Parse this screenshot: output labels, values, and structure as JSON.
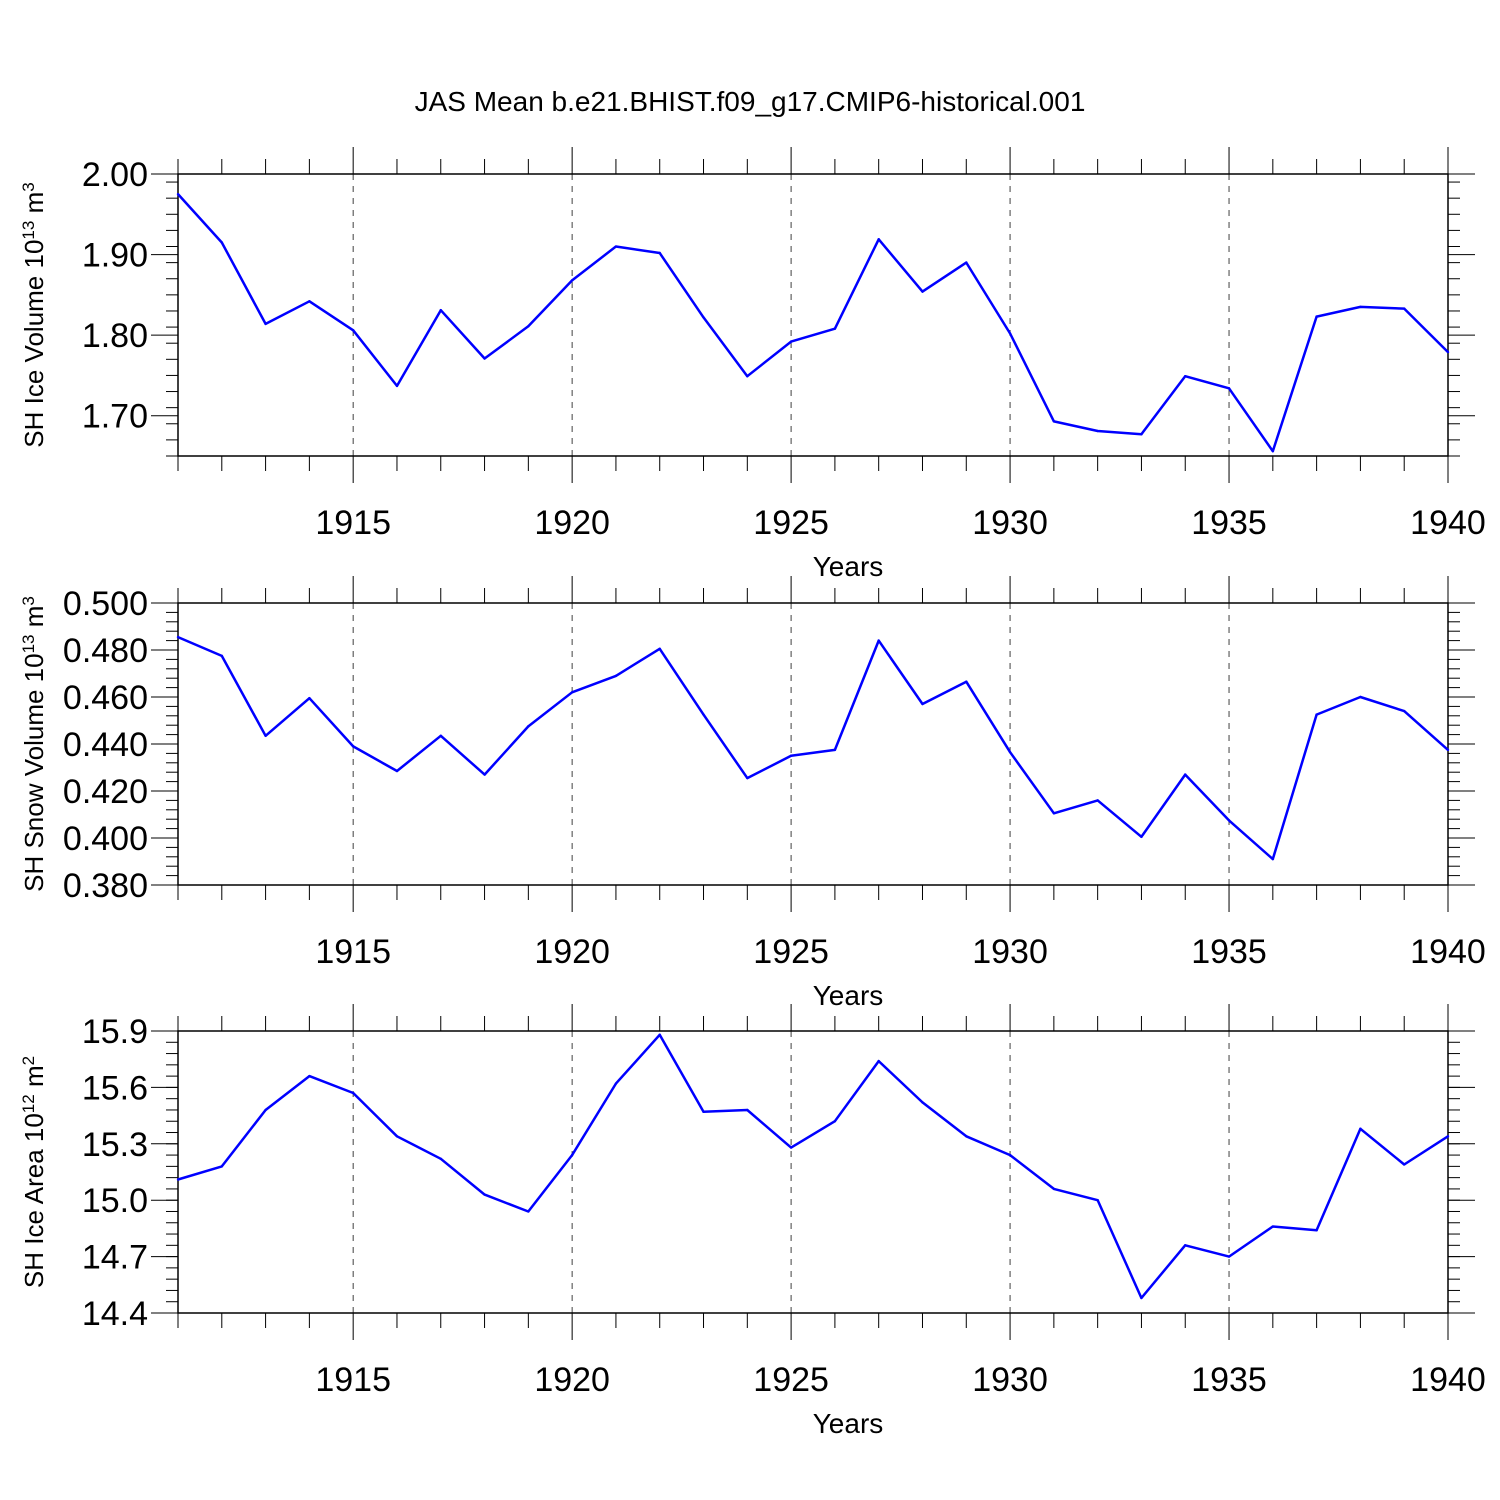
{
  "figure": {
    "title": "JAS Mean b.e21.BHIST.f09_g17.CMIP6-historical.001"
  },
  "colors": {
    "line": "#0000ff",
    "axis": "#000000",
    "gridline": "#000000"
  },
  "chart_data": [
    {
      "type": "line",
      "panel": "sh-ice-volume",
      "title": "",
      "xlabel": "Years",
      "ylabel": {
        "text": "SH Ice Volume 10",
        "exponent": "13",
        "unit": " m",
        "unit_exponent": "3"
      },
      "xlim": [
        1911,
        1940
      ],
      "ylim": [
        1.65,
        2.0
      ],
      "xticks": [
        "1915",
        "1920",
        "1925",
        "1930",
        "1935",
        "1940"
      ],
      "yticks": [
        "1.70",
        "1.80",
        "1.90",
        "2.00"
      ],
      "grid": "vertical dashed at major x ticks",
      "series": [
        {
          "name": "SH Ice Volume",
          "x": [
            1911,
            1912,
            1913,
            1914,
            1915,
            1916,
            1917,
            1918,
            1919,
            1920,
            1921,
            1922,
            1923,
            1924,
            1925,
            1926,
            1927,
            1928,
            1929,
            1930,
            1931,
            1932,
            1933,
            1934,
            1935,
            1936,
            1937,
            1938,
            1939,
            1940
          ],
          "values": [
            1.975,
            1.915,
            1.814,
            1.842,
            1.806,
            1.737,
            1.831,
            1.771,
            1.811,
            1.868,
            1.91,
            1.902,
            1.822,
            1.749,
            1.792,
            1.808,
            1.919,
            1.854,
            1.89,
            1.802,
            1.693,
            1.681,
            1.677,
            1.749,
            1.734,
            1.656,
            1.823,
            1.835,
            1.833,
            1.779
          ]
        }
      ]
    },
    {
      "type": "line",
      "panel": "sh-snow-volume",
      "title": "",
      "xlabel": "Years",
      "ylabel": {
        "text": "SH Snow Volume 10",
        "exponent": "13",
        "unit": " m",
        "unit_exponent": "3"
      },
      "xlim": [
        1911,
        1940
      ],
      "ylim": [
        0.38,
        0.5
      ],
      "xticks": [
        "1915",
        "1920",
        "1925",
        "1930",
        "1935",
        "1940"
      ],
      "yticks": [
        "0.380",
        "0.400",
        "0.420",
        "0.440",
        "0.460",
        "0.480",
        "0.500"
      ],
      "grid": "vertical dashed at major x ticks",
      "series": [
        {
          "name": "SH Snow Volume",
          "x": [
            1911,
            1912,
            1913,
            1914,
            1915,
            1916,
            1917,
            1918,
            1919,
            1920,
            1921,
            1922,
            1923,
            1924,
            1925,
            1926,
            1927,
            1928,
            1929,
            1930,
            1931,
            1932,
            1933,
            1934,
            1935,
            1936,
            1937,
            1938,
            1939,
            1940
          ],
          "values": [
            0.4855,
            0.4775,
            0.4435,
            0.4595,
            0.439,
            0.4285,
            0.4435,
            0.427,
            0.4475,
            0.462,
            0.469,
            0.4805,
            0.4525,
            0.4255,
            0.435,
            0.4375,
            0.484,
            0.457,
            0.4665,
            0.4365,
            0.4105,
            0.416,
            0.4005,
            0.427,
            0.4075,
            0.391,
            0.4525,
            0.46,
            0.454,
            0.4375
          ]
        }
      ]
    },
    {
      "type": "line",
      "panel": "sh-ice-area",
      "title": "",
      "xlabel": "Years",
      "ylabel": {
        "text": "SH Ice Area 10",
        "exponent": "12",
        "unit": " m",
        "unit_exponent": "2"
      },
      "xlim": [
        1911,
        1940
      ],
      "ylim": [
        14.4,
        15.9
      ],
      "xticks": [
        "1915",
        "1920",
        "1925",
        "1930",
        "1935",
        "1940"
      ],
      "yticks": [
        "14.4",
        "14.7",
        "15.0",
        "15.3",
        "15.6",
        "15.9"
      ],
      "grid": "vertical dashed at major x ticks",
      "series": [
        {
          "name": "SH Ice Area",
          "x": [
            1911,
            1912,
            1913,
            1914,
            1915,
            1916,
            1917,
            1918,
            1919,
            1920,
            1921,
            1922,
            1923,
            1924,
            1925,
            1926,
            1927,
            1928,
            1929,
            1930,
            1931,
            1932,
            1933,
            1934,
            1935,
            1936,
            1937,
            1938,
            1939,
            1940
          ],
          "values": [
            15.11,
            15.18,
            15.48,
            15.66,
            15.57,
            15.34,
            15.22,
            15.03,
            14.94,
            15.24,
            15.62,
            15.88,
            15.47,
            15.48,
            15.28,
            15.42,
            15.74,
            15.52,
            15.34,
            15.24,
            15.06,
            15.0,
            14.48,
            14.76,
            14.7,
            14.86,
            14.84,
            15.38,
            15.19,
            15.34
          ]
        }
      ]
    }
  ]
}
